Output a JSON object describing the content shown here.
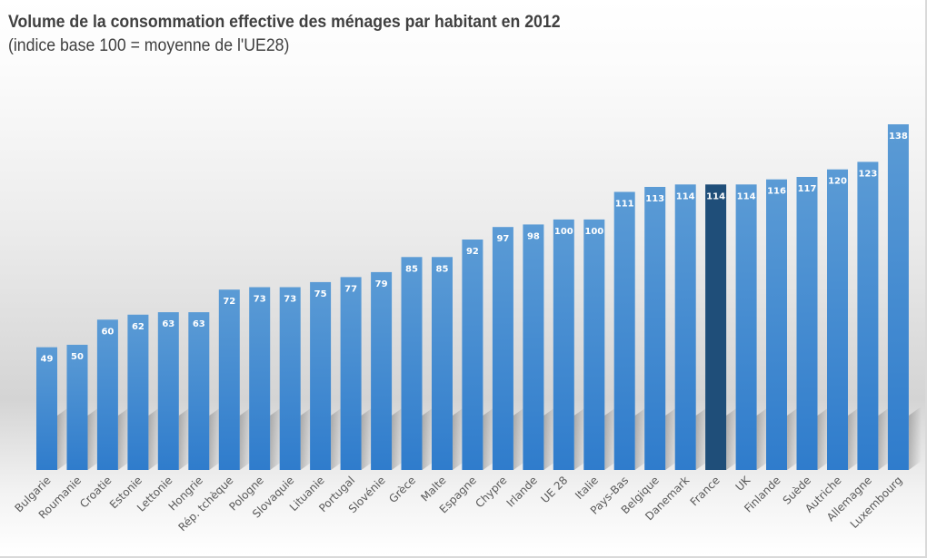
{
  "chart_data": {
    "type": "bar",
    "title": "Volume de la consommation effective des ménages par habitant en 2012",
    "subtitle": "(indice base 100 = moyenne de l'UE28)",
    "xlabel": "",
    "ylabel": "",
    "ylim": [
      0,
      140
    ],
    "grid": false,
    "legend": "none",
    "categories": [
      "Bulgarie",
      "Roumanie",
      "Croatie",
      "Estonie",
      "Lettonie",
      "Hongrie",
      "Rép. tchèque",
      "Pologne",
      "Slovaquie",
      "Lituanie",
      "Portugal",
      "Slovénie",
      "Grèce",
      "Malte",
      "Espagne",
      "Chypre",
      "Irlande",
      "UE 28",
      "Italie",
      "Pays-Bas",
      "Belgique",
      "Danemark",
      "France",
      "UK",
      "Finlande",
      "Suède",
      "Autriche",
      "Allemagne",
      "Luxembourg"
    ],
    "values": [
      49,
      50,
      60,
      62,
      63,
      63,
      72,
      73,
      73,
      75,
      77,
      79,
      85,
      85,
      92,
      97,
      98,
      100,
      100,
      111,
      113,
      114,
      114,
      114,
      116,
      117,
      120,
      123,
      138
    ],
    "highlight": "France",
    "colors": {
      "bar_top": "#5b9bd5",
      "bar_bottom": "#2f7ccc",
      "highlight": "#1f4e79",
      "label_text": "#ffffff",
      "axis_text": "#595959"
    }
  }
}
